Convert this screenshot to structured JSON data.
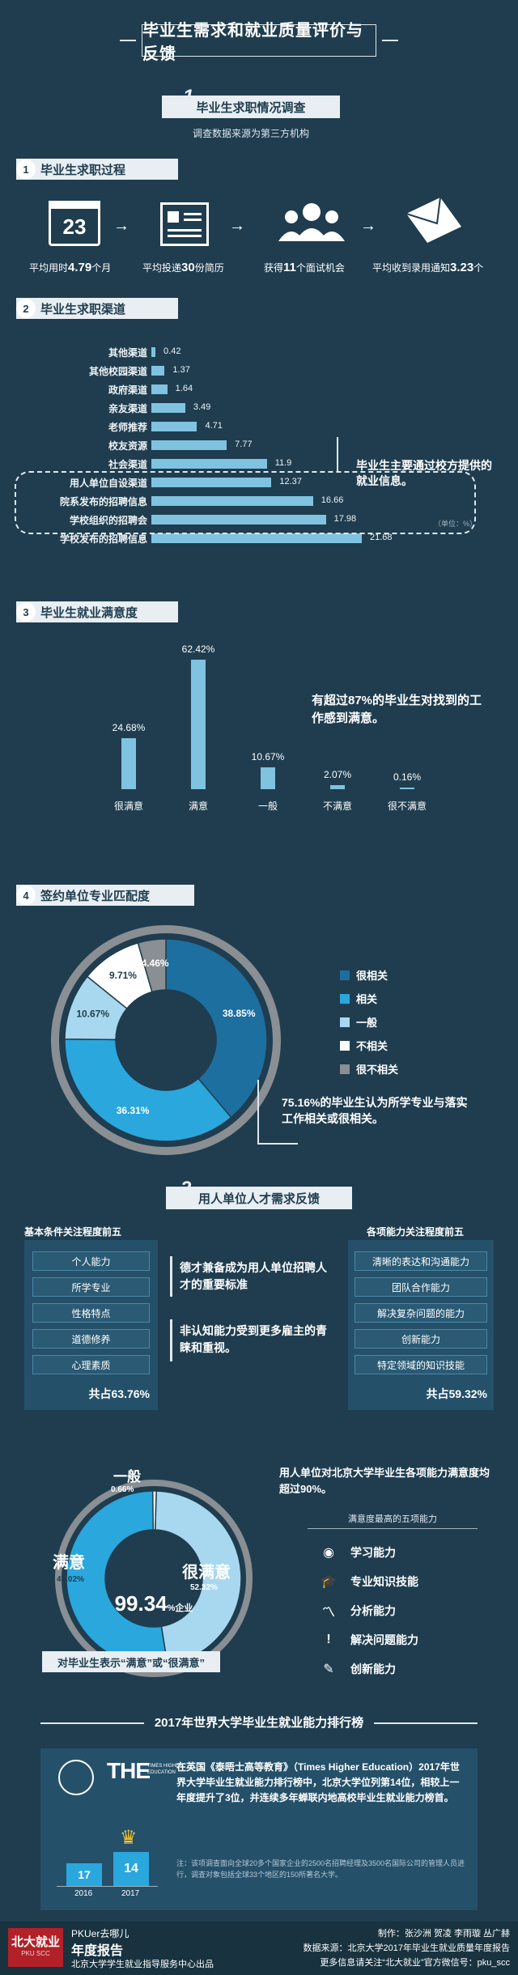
{
  "header": {
    "title": "毕业生需求和就业质量评价与反馈"
  },
  "section1": {
    "number": "1",
    "title": "毕业生求职情况调查",
    "note": "调查数据来源为第三方机构"
  },
  "process": {
    "num": "1",
    "title": "毕业生求职过程",
    "calendar_day": "23",
    "steps": [
      {
        "pre": "平均用时",
        "value": "4.79",
        "post": "个月"
      },
      {
        "pre": "平均投递",
        "value": "30",
        "post": "份简历"
      },
      {
        "pre": "获得",
        "value": "11",
        "post": "个面试机会"
      },
      {
        "pre": "平均收到录用通知",
        "value": "3.23",
        "post": "个"
      }
    ]
  },
  "channels": {
    "num": "2",
    "title": "毕业生求职渠道",
    "callout": "毕业生主要通过校方提供的就业信息。",
    "unit": "（单位：%）",
    "items": [
      {
        "label": "其他渠道",
        "value": "0.42"
      },
      {
        "label": "其他校园渠道",
        "value": "1.37"
      },
      {
        "label": "政府渠道",
        "value": "1.64"
      },
      {
        "label": "亲友渠道",
        "value": "3.49"
      },
      {
        "label": "老师推荐",
        "value": "4.71"
      },
      {
        "label": "校友资源",
        "value": "7.77"
      },
      {
        "label": "社会渠道",
        "value": "11.9"
      },
      {
        "label": "用人单位自设渠道",
        "value": "12.37"
      },
      {
        "label": "院系发布的招聘信息",
        "value": "16.66"
      },
      {
        "label": "学校组织的招聘会",
        "value": "17.98"
      },
      {
        "label": "学校发布的招聘信息",
        "value": "21.68"
      }
    ]
  },
  "satisfaction": {
    "num": "3",
    "title": "毕业生就业满意度",
    "callout": "有超过87%的毕业生对找到的工作感到满意。",
    "chart_data": {
      "type": "bar",
      "categories": [
        "很满意",
        "满意",
        "一般",
        "不满意",
        "很不满意"
      ],
      "values": [
        24.68,
        62.42,
        10.67,
        2.07,
        0.16
      ],
      "labels": [
        "24.68%",
        "62.42%",
        "10.67%",
        "2.07%",
        "0.16%"
      ]
    }
  },
  "match": {
    "num": "4",
    "title": "签约单位专业匹配度",
    "callout": "75.16%的毕业生认为所学专业与落实工作相关或很相关。",
    "legend": [
      "很相关",
      "相关",
      "一般",
      "不相关",
      "很不相关"
    ],
    "colors": [
      "#1d6fa0",
      "#2aa7dd",
      "#a8d8ef",
      "#ffffff",
      "#8a8f93"
    ],
    "chart_data": {
      "type": "pie",
      "categories": [
        "很相关",
        "相关",
        "一般",
        "不相关",
        "很不相关"
      ],
      "values": [
        38.85,
        36.31,
        10.67,
        9.71,
        4.46
      ],
      "labels": [
        "38.85%",
        "36.31%",
        "10.67%",
        "9.71%",
        "4.46%"
      ]
    }
  },
  "section2": {
    "number": "2",
    "title": "用人单位人才需求反馈"
  },
  "basic": {
    "title": "基本条件关注程度前五",
    "items": [
      "个人能力",
      "所学专业",
      "性格特点",
      "道德修养",
      "心理素质"
    ],
    "total": "共占63.76%"
  },
  "ability": {
    "title": "各项能力关注程度前五",
    "items": [
      "清晰的表达和沟通能力",
      "团队合作能力",
      "解决复杂问题的能力",
      "创新能力",
      "特定领域的知识技能"
    ],
    "total": "共占59.32%"
  },
  "mid_notes": {
    "a": "德才兼备成为用人单位招聘人才的重要标准",
    "b": "非认知能力受到更多雇主的青睐和重视。"
  },
  "employer": {
    "callout": "用人单位对北京大学毕业生各项能力满意度均超过90%。",
    "center": "99.34",
    "center_suffix": "%企业",
    "caption": "对毕业生表示“满意”或“很满意”",
    "chart_data": {
      "type": "pie",
      "categories": [
        "一般",
        "满意",
        "很满意"
      ],
      "values": [
        0.66,
        47.02,
        52.32
      ],
      "labels": [
        "0.66%",
        "47.02%",
        "52.32%"
      ]
    },
    "seg_names": [
      "一般",
      "满意",
      "很满意"
    ],
    "top5_title": "满意度最高的五项能力",
    "top5": [
      "学习能力",
      "专业知识技能",
      "分析能力",
      "解决问题能力",
      "创新能力"
    ]
  },
  "ranking": {
    "title": "2017年世界大学毕业生就业能力排行榜",
    "logo": "THE",
    "logo_sub": "TIMES HIGHER EDUCATION",
    "bars": [
      {
        "year": "2016",
        "rank": "17"
      },
      {
        "year": "2017",
        "rank": "14"
      }
    ],
    "text": "在英国《泰晤士高等教育》（Times Higher Education）2017年世界大学毕业生就业能力排行榜中，北京大学位列第14位，相较上一年度提升了3位，并连续多年蝉联内地高校毕业生就业能力榜首。",
    "note": "注：该项调查面向全球20多个国家企业的2500名招聘经理及3500名国际公司的管理人员进行，调查对象包括全球33个地区的150所著名大学。"
  },
  "footer": {
    "logo": "北大就业",
    "logo_sub": "PKU SCC",
    "brand": "PKUer去哪儿",
    "report": "年度报告",
    "producer": "北京大学学生就业指导服务中心出品",
    "credits": "制作：张沙洲 贺凌 李雨璇 丛广赫",
    "source": "数据来源：北京大学2017年毕业生就业质量年度报告",
    "wechat": "更多信息请关注“北大就业”官方微信号：pku_scc"
  }
}
